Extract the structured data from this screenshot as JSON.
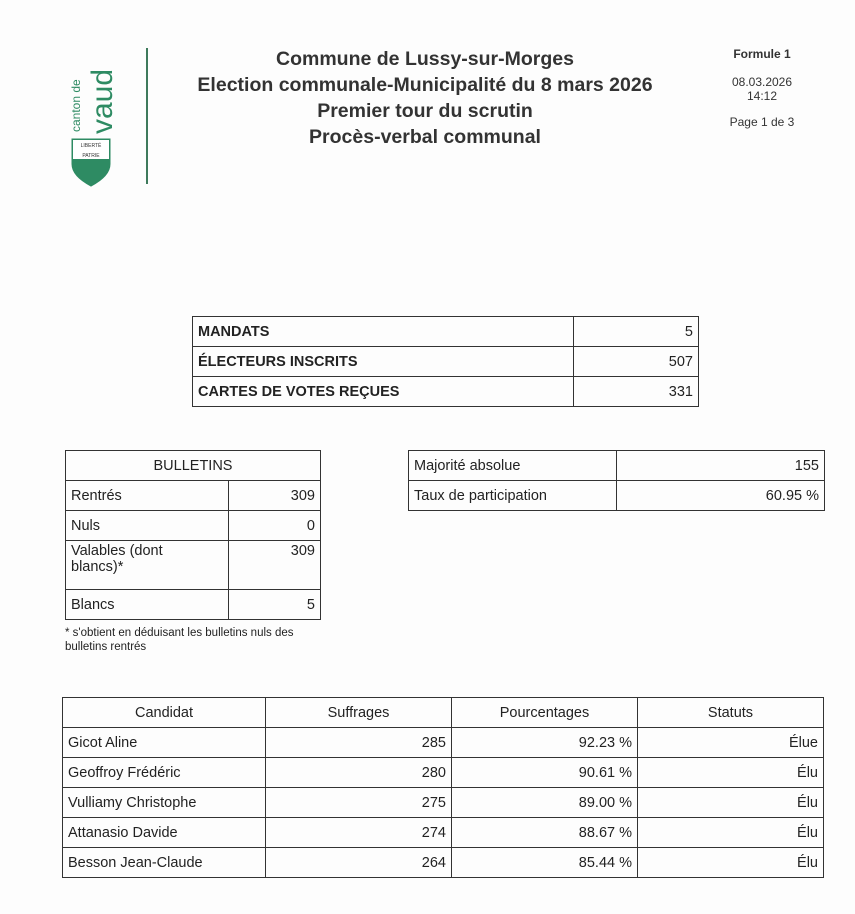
{
  "logo": {
    "text_top": "canton de",
    "text_main": "vaud",
    "motto": "LIBERTÉ ET PATRIE",
    "color": "#2e8b63"
  },
  "header": {
    "lines": [
      "Commune de Lussy-sur-Morges",
      "Election communale-Municipalité du 8 mars 2026",
      "Premier tour du scrutin",
      "Procès-verbal communal"
    ]
  },
  "meta": {
    "form": "Formule 1",
    "date": "08.03.2026",
    "time": "14:12",
    "page": "Page 1 de 3"
  },
  "summary": [
    {
      "label": "MANDATS",
      "value": "5"
    },
    {
      "label": "ÉLECTEURS INSCRITS",
      "value": "507"
    },
    {
      "label": "CARTES DE VOTES REÇUES",
      "value": "331"
    }
  ],
  "bulletins": {
    "title": "BULLETINS",
    "rows": [
      {
        "label": "Rentrés",
        "value": "309"
      },
      {
        "label": "Nuls",
        "value": "0"
      },
      {
        "label": "Valables (dont blancs)*",
        "value": "309"
      },
      {
        "label": "Blancs",
        "value": "5"
      }
    ],
    "footnote": "* s'obtient en déduisant les bulletins nuls des bulletins rentrés"
  },
  "majority": [
    {
      "label": "Majorité absolue",
      "value": "155"
    },
    {
      "label": "Taux de participation",
      "value": "60.95 %"
    }
  ],
  "candidates": {
    "headers": [
      "Candidat",
      "Suffrages",
      "Pourcentages",
      "Statuts"
    ],
    "rows": [
      [
        "Gicot Aline",
        "285",
        "92.23 %",
        "Élue"
      ],
      [
        "Geoffroy Frédéric",
        "280",
        "90.61 %",
        "Élu"
      ],
      [
        "Vulliamy Christophe",
        "275",
        "89.00 %",
        "Élu"
      ],
      [
        "Attanasio Davide",
        "274",
        "88.67 %",
        "Élu"
      ],
      [
        "Besson Jean-Claude",
        "264",
        "85.44 %",
        "Élu"
      ]
    ]
  }
}
